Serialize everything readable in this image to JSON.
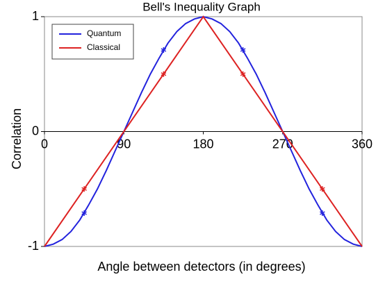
{
  "chart_data": {
    "type": "line",
    "title": "Bell's Inequality Graph",
    "x_label": "Angle between detectors (in degrees)",
    "y_label": "Correlation",
    "xlim": [
      0,
      360
    ],
    "ylim": [
      -1,
      1
    ],
    "xticks": [
      0,
      90,
      180,
      270,
      360
    ],
    "yticks": [
      -1,
      0,
      1
    ],
    "legend": "upper left",
    "series": [
      {
        "name": "Quantum",
        "color": "#2222dd",
        "x": [
          0,
          10,
          20,
          30,
          40,
          50,
          60,
          70,
          80,
          90,
          100,
          110,
          120,
          130,
          140,
          150,
          160,
          170,
          180,
          190,
          200,
          210,
          220,
          230,
          240,
          250,
          260,
          270,
          280,
          290,
          300,
          310,
          320,
          330,
          340,
          350,
          360
        ],
        "values": [
          -1,
          -0.98,
          -0.94,
          -0.87,
          -0.77,
          -0.64,
          -0.5,
          -0.34,
          -0.17,
          0,
          0.17,
          0.34,
          0.5,
          0.64,
          0.77,
          0.87,
          0.94,
          0.98,
          1,
          0.98,
          0.94,
          0.87,
          0.77,
          0.64,
          0.5,
          0.34,
          0.17,
          0,
          -0.17,
          -0.34,
          -0.5,
          -0.64,
          -0.77,
          -0.87,
          -0.94,
          -0.98,
          -1
        ],
        "marked_points": {
          "x": [
            45,
            135,
            225,
            315
          ],
          "values": [
            -0.71,
            0.71,
            0.71,
            -0.71
          ]
        }
      },
      {
        "name": "Classical",
        "color": "#dd2222",
        "x": [
          0,
          180,
          360
        ],
        "values": [
          -1,
          1,
          -1
        ],
        "marked_points": {
          "x": [
            45,
            135,
            225,
            315
          ],
          "values": [
            -0.5,
            0.5,
            0.5,
            -0.5
          ]
        }
      }
    ]
  }
}
